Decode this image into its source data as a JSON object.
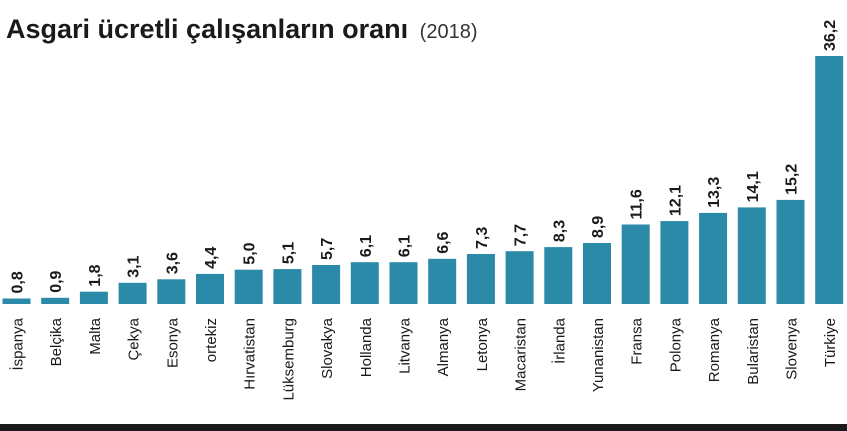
{
  "title": "Asgari ücretli çalışanların oranı",
  "subtitle": "(2018)",
  "colors": {
    "bar": "#2a8aa8",
    "text": "#1a1a1a"
  },
  "chart_data": {
    "type": "bar",
    "title": "Asgari ücretli çalışanların oranı",
    "subtitle": "(2018)",
    "categories": [
      "İspanya",
      "Belçika",
      "Malta",
      "Çekya",
      "Esonya",
      "ortekiz",
      "Hırvatistan",
      "Lüksemburg",
      "Slovakya",
      "Hollanda",
      "Litvanya",
      "Almanya",
      "Letonya",
      "Macaristan",
      "İrlanda",
      "Yunanistan",
      "Fransa",
      "Polonya",
      "Romanya",
      "Bularistan",
      "Slovenya",
      "Türkiye"
    ],
    "values": [
      0.8,
      0.9,
      1.8,
      3.1,
      3.6,
      4.4,
      5.0,
      5.1,
      5.7,
      6.1,
      6.1,
      6.6,
      7.3,
      7.7,
      8.3,
      8.9,
      11.6,
      12.1,
      13.3,
      14.1,
      15.2,
      36.2
    ],
    "value_labels": [
      "0,8",
      "0,9",
      "1,8",
      "3,1",
      "3,6",
      "4,4",
      "5,0",
      "5,1",
      "5,7",
      "6,1",
      "6,1",
      "6,6",
      "7,3",
      "7,7",
      "8,3",
      "8,9",
      "11,6",
      "12,1",
      "13,3",
      "14,1",
      "15,2",
      "36,2"
    ],
    "xlabel": "",
    "ylabel": "",
    "ylim": [
      0,
      36.2
    ],
    "grid": false,
    "legend": "none"
  }
}
